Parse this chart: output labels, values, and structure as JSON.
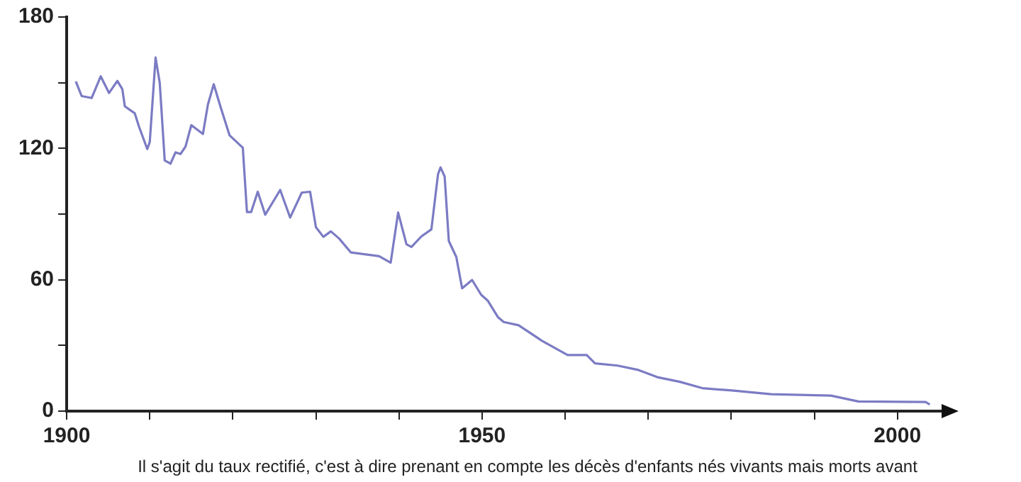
{
  "chart_data": {
    "type": "line",
    "x": [
      1901.1,
      1901.8,
      1903,
      1904.1,
      1905.1,
      1906.1,
      1906.7,
      1907,
      1908.2,
      1908.7,
      1909.7,
      1910,
      1910.7,
      1911.2,
      1911.8,
      1912.5,
      1913.1,
      1913.7,
      1914.3,
      1915,
      1916.4,
      1917,
      1917.7,
      1918.5,
      1919.6,
      1921.2,
      1921.7,
      1922.2,
      1923,
      1923.9,
      1925.7,
      1926.9,
      1928.3,
      1929.3,
      1930,
      1930.9,
      1931.8,
      1932.8,
      1934.2,
      1937.6,
      1939,
      1939.9,
      1940.9,
      1941.5,
      1942.7,
      1943.9,
      1944.7,
      1945,
      1945.5,
      1946,
      1946.9,
      1947.6,
      1948.8,
      1949.9,
      1950.7,
      1951.9,
      1952.6,
      1954.4,
      1957.3,
      1960.3,
      1962.6,
      1963.6,
      1966.3,
      1968.7,
      1971.1,
      1973.8,
      1976.5,
      1980.1,
      1984.8,
      1992,
      1995.3,
      2003.4,
      2003.9
    ],
    "series": [
      {
        "color": "#7b7bc4",
        "values": [
          150.6,
          143.9,
          143,
          152.9,
          145.3,
          150.8,
          147,
          139.2,
          136,
          130,
          119.7,
          122.9,
          161.5,
          150,
          114.5,
          113,
          118.2,
          117.4,
          120.8,
          130.6,
          126.6,
          140,
          149.3,
          139.2,
          126,
          120.3,
          90.9,
          90.9,
          100.2,
          89.7,
          101,
          88.4,
          99.8,
          100.2,
          84,
          79.6,
          82.1,
          78.8,
          72.5,
          70.8,
          67.8,
          90.7,
          76.2,
          75,
          79.8,
          83,
          108.2,
          111.3,
          107.1,
          77.7,
          70.4,
          56.1,
          59.9,
          53.1,
          50.4,
          43,
          40.7,
          39.2,
          31.9,
          25.6,
          25.6,
          21.8,
          20.8,
          18.9,
          15.5,
          13.4,
          10.5,
          9.4,
          7.7,
          7.1,
          4.4,
          4.2,
          3
        ]
      }
    ],
    "xlim": [
      1900,
      2006
    ],
    "xticks": [
      1900,
      {
        "value": 1910,
        "label": null
      },
      {
        "value": 1920,
        "label": null
      },
      {
        "value": 1930,
        "label": null
      },
      {
        "value": 1940,
        "label": null
      },
      1950,
      {
        "value": 1960,
        "label": null
      },
      {
        "value": 1970,
        "label": null
      },
      {
        "value": 1980,
        "label": null
      },
      {
        "value": 1990,
        "label": null
      },
      2000
    ],
    "ylim": [
      0,
      180
    ],
    "yticks": [
      0,
      {
        "value": 30,
        "label": null
      },
      60,
      {
        "value": 90,
        "label": null
      },
      120,
      {
        "value": 150,
        "label": null
      },
      180
    ],
    "grid": false,
    "legend": false,
    "marker": "none",
    "line_style": "solid",
    "annotations": [
      "Il s'agit du taux rectifié, c'est à dire prenant en compte les décès d'enfants nés vivants mais morts avant"
    ]
  }
}
